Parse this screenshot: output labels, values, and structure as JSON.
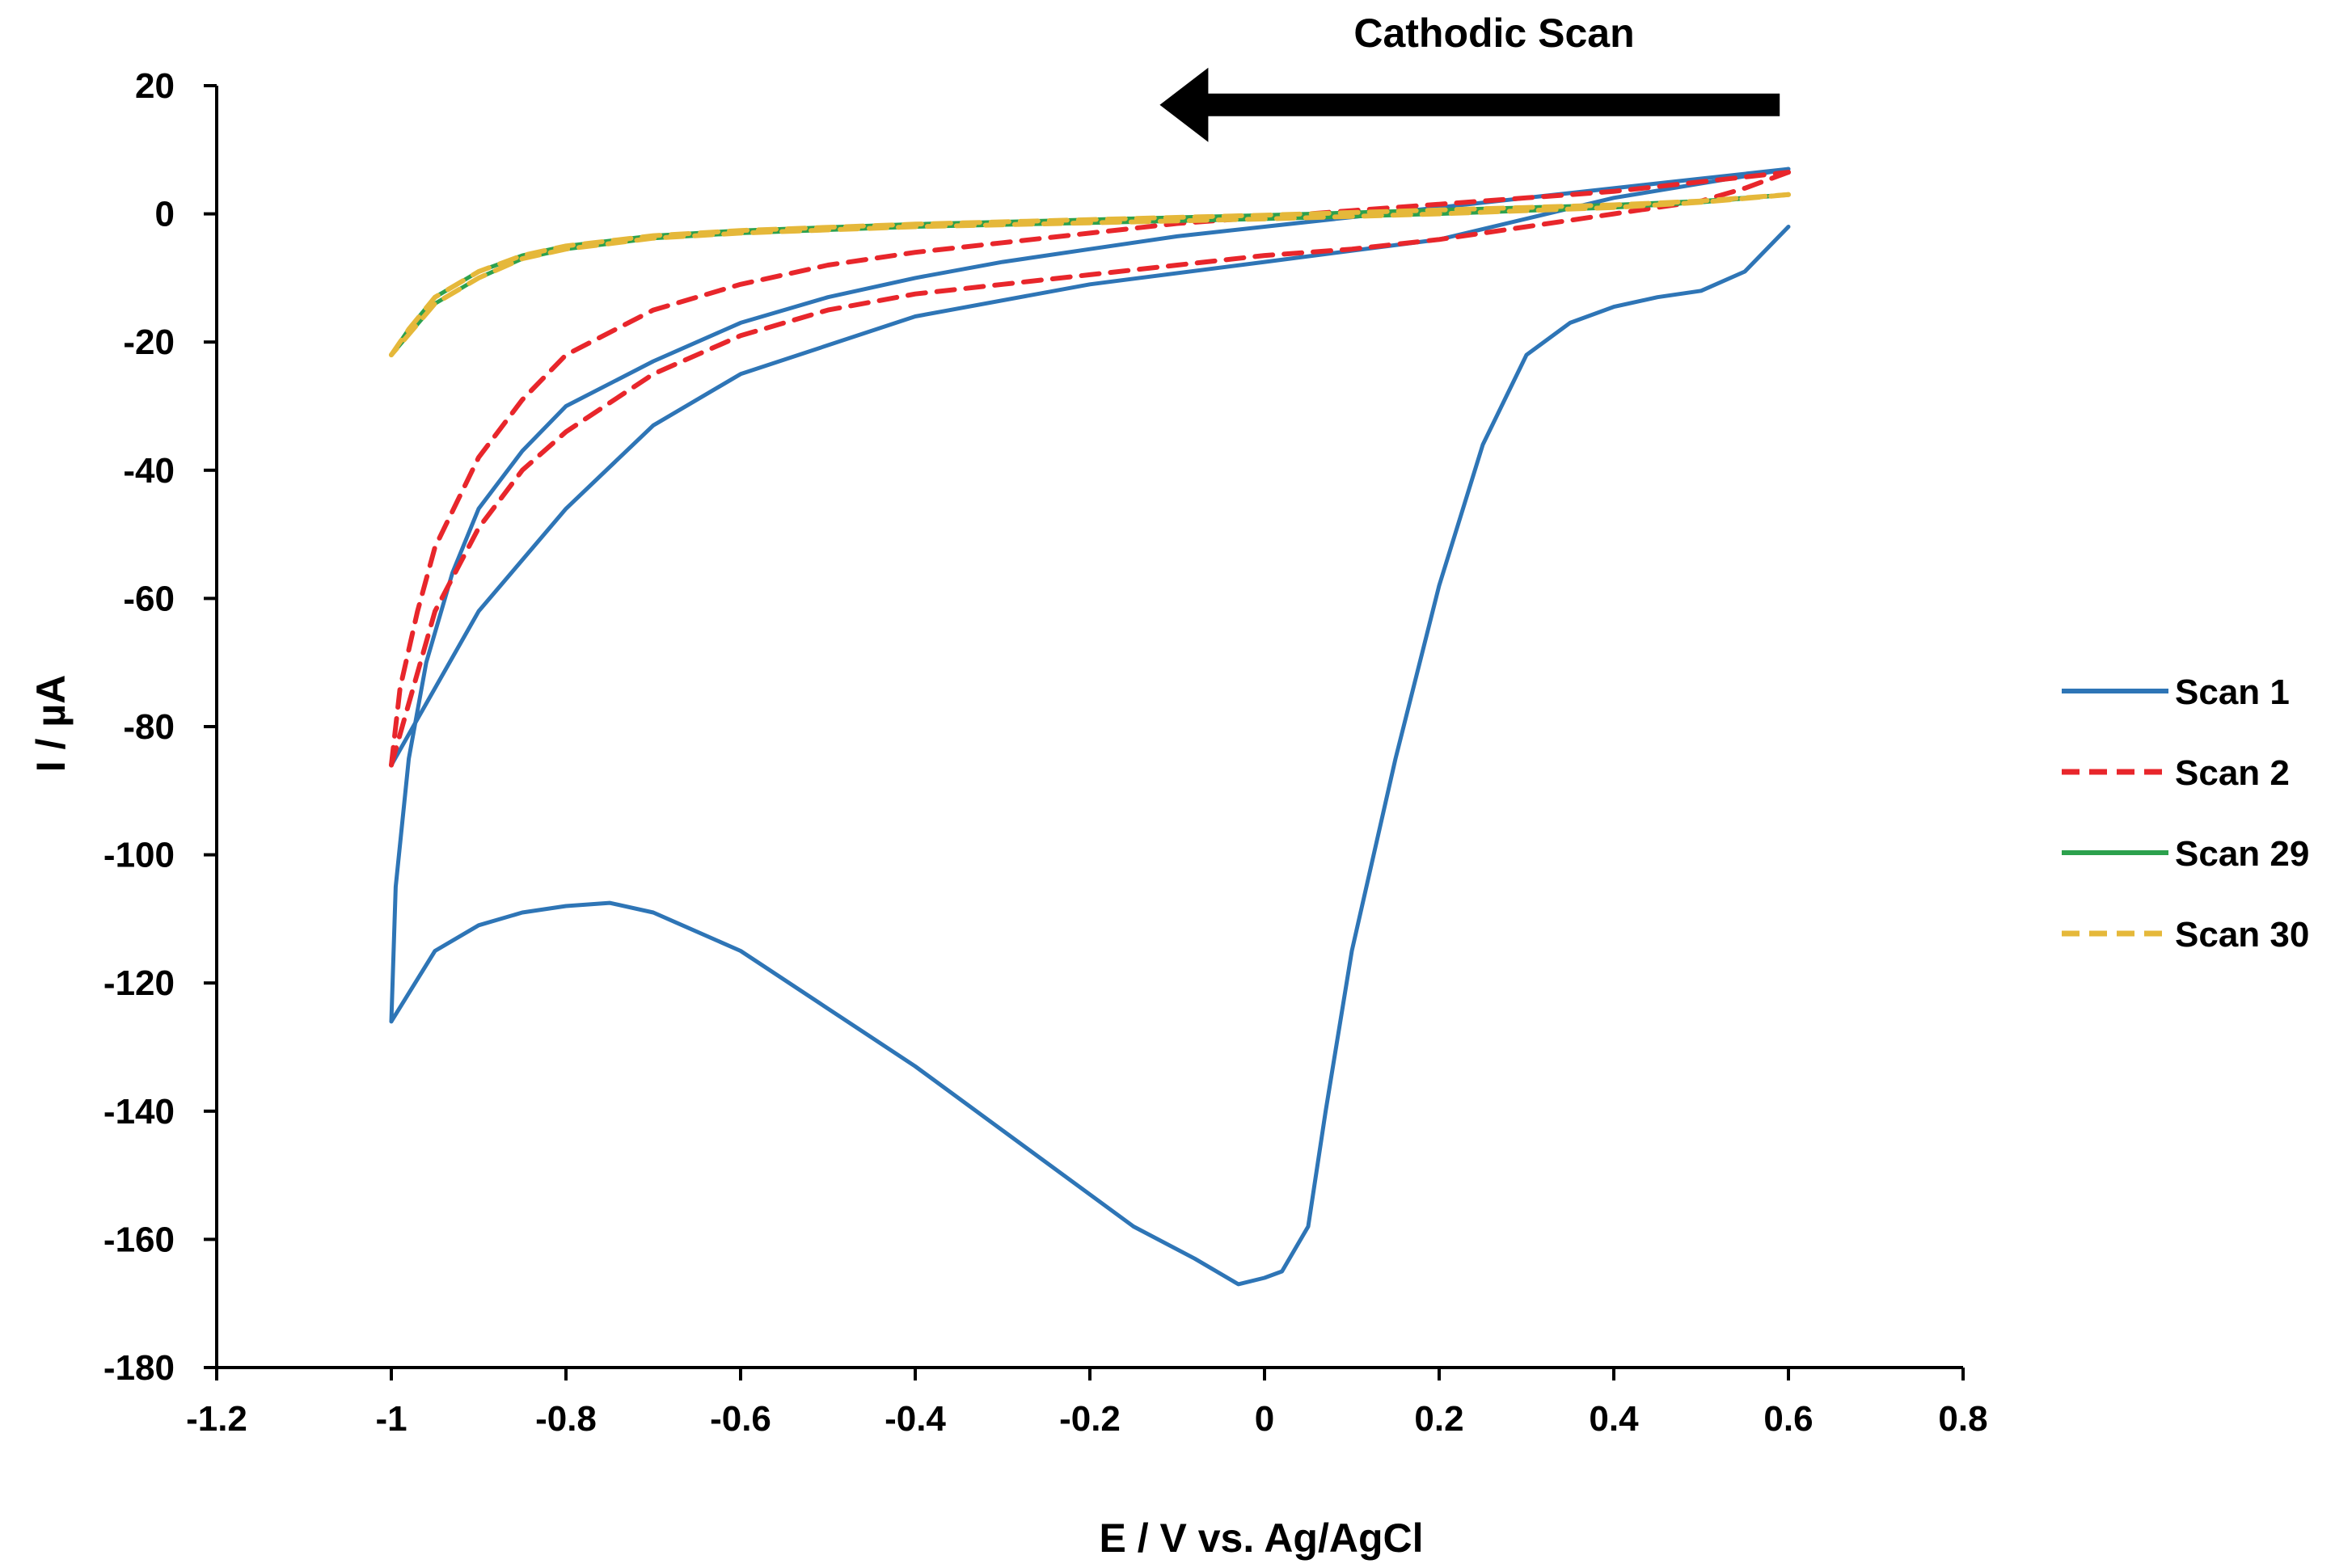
{
  "chart_data": {
    "type": "line",
    "title": "",
    "xlabel": "E / V vs. Ag/AgCl",
    "ylabel": "I / µA",
    "xlim": [
      -1.2,
      0.8
    ],
    "ylim": [
      -180,
      20
    ],
    "xticks": [
      -1.2,
      -1.0,
      -0.8,
      -0.6,
      -0.4,
      -0.2,
      0.0,
      0.2,
      0.4,
      0.6,
      0.8
    ],
    "xtick_labels": [
      "-1.2",
      "-1",
      "-0.8",
      "-0.6",
      "-0.4",
      "-0.2",
      "0",
      "0.2",
      "0.4",
      "0.6",
      "0.8"
    ],
    "yticks": [
      20,
      0,
      -20,
      -40,
      -60,
      -80,
      -100,
      -120,
      -140,
      -160,
      -180
    ],
    "ytick_labels": [
      "20",
      "0",
      "-20",
      "-40",
      "-60",
      "-80",
      "-100",
      "-120",
      "-140",
      "-160",
      "-180"
    ],
    "grid": false,
    "legend_position": "right",
    "annotation": {
      "text": "Cathodic Scan",
      "arrow_from_x": 0.59,
      "arrow_to_x": -0.12,
      "arrow_y": 17
    },
    "series": [
      {
        "name": "Scan 1",
        "color": "#2e75b6",
        "dash": "solid",
        "cathodic": [
          [
            0.6,
            -2
          ],
          [
            0.55,
            -9
          ],
          [
            0.5,
            -12
          ],
          [
            0.45,
            -13
          ],
          [
            0.4,
            -14.5
          ],
          [
            0.35,
            -17
          ],
          [
            0.3,
            -22
          ],
          [
            0.25,
            -36
          ],
          [
            0.2,
            -58
          ],
          [
            0.15,
            -85
          ],
          [
            0.1,
            -115
          ],
          [
            0.07,
            -140
          ],
          [
            0.05,
            -158
          ],
          [
            0.02,
            -165
          ],
          [
            0.0,
            -166
          ],
          [
            -0.03,
            -167
          ],
          [
            -0.08,
            -163
          ],
          [
            -0.15,
            -158
          ],
          [
            -0.22,
            -151
          ],
          [
            -0.3,
            -143
          ],
          [
            -0.4,
            -133
          ],
          [
            -0.5,
            -124
          ],
          [
            -0.6,
            -115
          ],
          [
            -0.7,
            -109
          ],
          [
            -0.75,
            -107.5
          ],
          [
            -0.8,
            -108
          ],
          [
            -0.85,
            -109
          ],
          [
            -0.9,
            -111
          ],
          [
            -0.95,
            -115
          ],
          [
            -1.0,
            -126
          ]
        ],
        "anodic": [
          [
            -1.0,
            -126
          ],
          [
            -0.995,
            -105
          ],
          [
            -0.98,
            -85
          ],
          [
            -0.96,
            -70
          ],
          [
            -0.93,
            -56
          ],
          [
            -0.9,
            -46
          ],
          [
            -0.85,
            -37
          ],
          [
            -0.8,
            -30
          ],
          [
            -0.7,
            -23
          ],
          [
            -0.6,
            -17
          ],
          [
            -0.5,
            -13
          ],
          [
            -0.4,
            -10
          ],
          [
            -0.3,
            -7.5
          ],
          [
            -0.2,
            -5.5
          ],
          [
            -0.1,
            -3.5
          ],
          [
            0.0,
            -2
          ],
          [
            0.1,
            -0.5
          ],
          [
            0.2,
            1
          ],
          [
            0.3,
            2.5
          ],
          [
            0.4,
            4
          ],
          [
            0.5,
            5.5
          ],
          [
            0.6,
            7
          ]
        ],
        "return": [
          [
            0.6,
            7
          ],
          [
            0.4,
            2.5
          ],
          [
            0.2,
            -4
          ],
          [
            0.0,
            -7.5
          ],
          [
            -0.2,
            -11
          ],
          [
            -0.4,
            -16
          ],
          [
            -0.6,
            -25
          ],
          [
            -0.7,
            -33
          ],
          [
            -0.8,
            -46
          ],
          [
            -0.9,
            -62
          ],
          [
            -1.0,
            -86
          ]
        ]
      },
      {
        "name": "Scan 2",
        "color": "#e8262b",
        "dash": "dashed",
        "cathodic": [
          [
            0.6,
            6.5
          ],
          [
            0.55,
            4
          ],
          [
            0.5,
            2
          ],
          [
            0.4,
            0
          ],
          [
            0.3,
            -2
          ],
          [
            0.2,
            -4
          ],
          [
            0.1,
            -5.5
          ],
          [
            0.0,
            -6.5
          ],
          [
            -0.1,
            -8
          ],
          [
            -0.2,
            -9.5
          ],
          [
            -0.3,
            -11
          ],
          [
            -0.4,
            -12.5
          ],
          [
            -0.5,
            -15
          ],
          [
            -0.6,
            -19
          ],
          [
            -0.7,
            -25
          ],
          [
            -0.8,
            -34
          ],
          [
            -0.85,
            -40
          ],
          [
            -0.9,
            -49
          ],
          [
            -0.95,
            -62
          ],
          [
            -1.0,
            -86
          ]
        ],
        "anodic": [
          [
            -1.0,
            -86
          ],
          [
            -0.99,
            -74
          ],
          [
            -0.97,
            -62
          ],
          [
            -0.95,
            -52
          ],
          [
            -0.9,
            -38
          ],
          [
            -0.85,
            -29
          ],
          [
            -0.8,
            -22
          ],
          [
            -0.7,
            -15
          ],
          [
            -0.6,
            -11
          ],
          [
            -0.5,
            -8
          ],
          [
            -0.4,
            -6
          ],
          [
            -0.3,
            -4.5
          ],
          [
            -0.2,
            -3
          ],
          [
            -0.1,
            -1.5
          ],
          [
            0.0,
            -0.5
          ],
          [
            0.1,
            0.5
          ],
          [
            0.2,
            1.5
          ],
          [
            0.3,
            2.5
          ],
          [
            0.4,
            3.5
          ],
          [
            0.5,
            5
          ],
          [
            0.6,
            6.5
          ]
        ]
      },
      {
        "name": "Scan 29",
        "color": "#2ca14d",
        "dash": "solid",
        "cathodic": [
          [
            0.6,
            3
          ],
          [
            0.5,
            1.8
          ],
          [
            0.4,
            1
          ],
          [
            0.3,
            0.5
          ],
          [
            0.2,
            0
          ],
          [
            0.1,
            -0.4
          ],
          [
            0.0,
            -0.8
          ],
          [
            -0.2,
            -1.4
          ],
          [
            -0.4,
            -2
          ],
          [
            -0.6,
            -3
          ],
          [
            -0.7,
            -3.8
          ],
          [
            -0.8,
            -5.5
          ],
          [
            -0.85,
            -7
          ],
          [
            -0.9,
            -10
          ],
          [
            -0.95,
            -14
          ],
          [
            -1.0,
            -22
          ]
        ],
        "anodic": [
          [
            -1.0,
            -22
          ],
          [
            -0.98,
            -18
          ],
          [
            -0.95,
            -13
          ],
          [
            -0.9,
            -9
          ],
          [
            -0.85,
            -6.5
          ],
          [
            -0.8,
            -5
          ],
          [
            -0.7,
            -3.4
          ],
          [
            -0.6,
            -2.6
          ],
          [
            -0.4,
            -1.6
          ],
          [
            -0.2,
            -0.9
          ],
          [
            0.0,
            -0.2
          ],
          [
            0.2,
            0.6
          ],
          [
            0.3,
            1
          ],
          [
            0.4,
            1.4
          ],
          [
            0.5,
            2
          ],
          [
            0.6,
            3
          ]
        ]
      },
      {
        "name": "Scan 30",
        "color": "#e5b83a",
        "dash": "dashed",
        "cathodic": [
          [
            0.6,
            3
          ],
          [
            0.5,
            1.8
          ],
          [
            0.4,
            1
          ],
          [
            0.3,
            0.5
          ],
          [
            0.2,
            0
          ],
          [
            0.1,
            -0.4
          ],
          [
            0.0,
            -0.8
          ],
          [
            -0.2,
            -1.4
          ],
          [
            -0.4,
            -2
          ],
          [
            -0.6,
            -3
          ],
          [
            -0.7,
            -3.8
          ],
          [
            -0.8,
            -5.5
          ],
          [
            -0.85,
            -7
          ],
          [
            -0.9,
            -10
          ],
          [
            -0.95,
            -14
          ],
          [
            -1.0,
            -22
          ]
        ],
        "anodic": [
          [
            -1.0,
            -22
          ],
          [
            -0.98,
            -18
          ],
          [
            -0.95,
            -13
          ],
          [
            -0.9,
            -9
          ],
          [
            -0.85,
            -6.5
          ],
          [
            -0.8,
            -5
          ],
          [
            -0.7,
            -3.4
          ],
          [
            -0.6,
            -2.6
          ],
          [
            -0.4,
            -1.6
          ],
          [
            -0.2,
            -0.9
          ],
          [
            0.0,
            -0.2
          ],
          [
            0.2,
            0.6
          ],
          [
            0.3,
            1
          ],
          [
            0.4,
            1.4
          ],
          [
            0.5,
            2
          ],
          [
            0.6,
            3
          ]
        ]
      }
    ]
  }
}
